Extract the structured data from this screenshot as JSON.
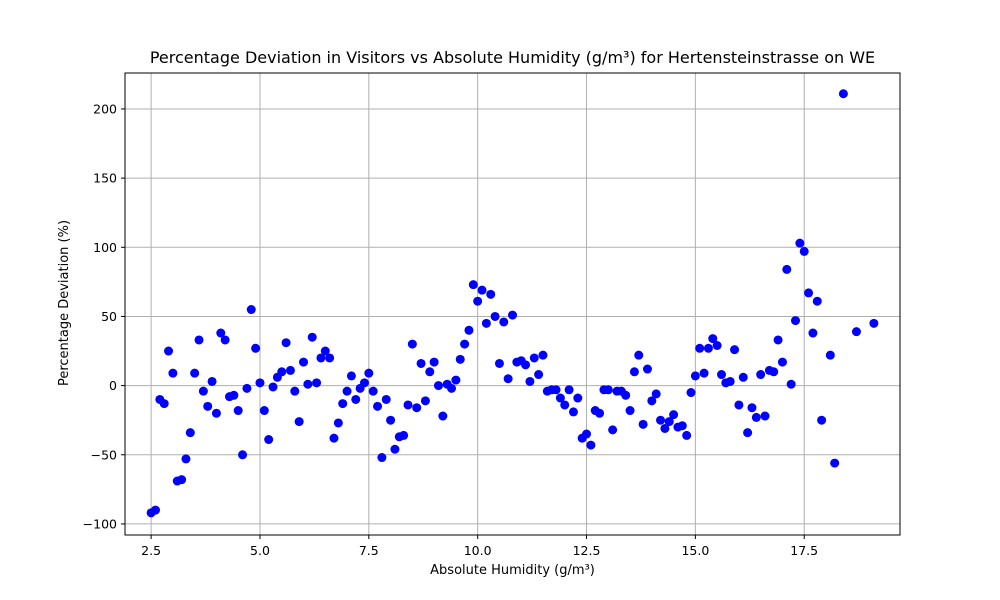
{
  "chart_data": {
    "type": "scatter",
    "title": "Percentage Deviation in Visitors vs Absolute Humidity (g/m³) for Hertensteinstrasse on WE",
    "xlabel": "Absolute Humidity (g/m³)",
    "ylabel": "Percentage Deviation (%)",
    "xlim": [
      1.9,
      19.7
    ],
    "ylim": [
      -108,
      226
    ],
    "xticks": [
      2.5,
      5.0,
      7.5,
      10.0,
      12.5,
      15.0,
      17.5
    ],
    "xtick_labels": [
      "2.5",
      "5.0",
      "7.5",
      "10.0",
      "12.5",
      "15.0",
      "17.5"
    ],
    "yticks": [
      -100,
      -50,
      0,
      50,
      100,
      150,
      200
    ],
    "ytick_labels": [
      "−100",
      "−50",
      "0",
      "50",
      "100",
      "150",
      "200"
    ],
    "grid": true,
    "marker_color": "#0000ff",
    "points": [
      [
        2.5,
        -92
      ],
      [
        2.6,
        -90
      ],
      [
        2.7,
        -10
      ],
      [
        2.8,
        -13
      ],
      [
        2.9,
        25
      ],
      [
        3.0,
        9
      ],
      [
        3.1,
        -69
      ],
      [
        3.2,
        -68
      ],
      [
        3.3,
        -53
      ],
      [
        3.4,
        -34
      ],
      [
        3.5,
        9
      ],
      [
        3.6,
        33
      ],
      [
        3.7,
        -4
      ],
      [
        3.8,
        -15
      ],
      [
        3.9,
        3
      ],
      [
        4.0,
        -20
      ],
      [
        4.1,
        38
      ],
      [
        4.2,
        33
      ],
      [
        4.3,
        -8
      ],
      [
        4.4,
        -7
      ],
      [
        4.5,
        -18
      ],
      [
        4.6,
        -50
      ],
      [
        4.7,
        -2
      ],
      [
        4.8,
        55
      ],
      [
        4.9,
        27
      ],
      [
        5.0,
        2
      ],
      [
        5.1,
        -18
      ],
      [
        5.2,
        -39
      ],
      [
        5.3,
        -1
      ],
      [
        5.4,
        6
      ],
      [
        5.5,
        10
      ],
      [
        5.6,
        31
      ],
      [
        5.7,
        11
      ],
      [
        5.8,
        -4
      ],
      [
        5.9,
        -26
      ],
      [
        6.0,
        17
      ],
      [
        6.1,
        1
      ],
      [
        6.2,
        35
      ],
      [
        6.3,
        2
      ],
      [
        6.4,
        20
      ],
      [
        6.5,
        25
      ],
      [
        6.6,
        20
      ],
      [
        6.7,
        -38
      ],
      [
        6.8,
        -27
      ],
      [
        6.9,
        -13
      ],
      [
        7.0,
        -4
      ],
      [
        7.1,
        7
      ],
      [
        7.2,
        -10
      ],
      [
        7.3,
        -2
      ],
      [
        7.4,
        2
      ],
      [
        7.5,
        9
      ],
      [
        7.6,
        -4
      ],
      [
        7.7,
        -15
      ],
      [
        7.8,
        -52
      ],
      [
        7.9,
        -10
      ],
      [
        8.0,
        -25
      ],
      [
        8.1,
        -46
      ],
      [
        8.2,
        -37
      ],
      [
        8.3,
        -36
      ],
      [
        8.4,
        -14
      ],
      [
        8.5,
        30
      ],
      [
        8.6,
        -16
      ],
      [
        8.7,
        16
      ],
      [
        8.8,
        -11
      ],
      [
        8.9,
        10
      ],
      [
        9.0,
        17
      ],
      [
        9.1,
        0
      ],
      [
        9.2,
        -22
      ],
      [
        9.3,
        1
      ],
      [
        9.4,
        -2
      ],
      [
        9.5,
        4
      ],
      [
        9.6,
        19
      ],
      [
        9.7,
        30
      ],
      [
        9.8,
        40
      ],
      [
        9.9,
        73
      ],
      [
        10.0,
        61
      ],
      [
        10.1,
        69
      ],
      [
        10.2,
        45
      ],
      [
        10.3,
        66
      ],
      [
        10.4,
        50
      ],
      [
        10.5,
        16
      ],
      [
        10.6,
        46
      ],
      [
        10.7,
        5
      ],
      [
        10.8,
        51
      ],
      [
        10.9,
        17
      ],
      [
        11.0,
        18
      ],
      [
        11.1,
        15
      ],
      [
        11.2,
        3
      ],
      [
        11.3,
        20
      ],
      [
        11.4,
        8
      ],
      [
        11.5,
        22
      ],
      [
        11.6,
        -4
      ],
      [
        11.7,
        -3
      ],
      [
        11.8,
        -3
      ],
      [
        11.9,
        -9
      ],
      [
        12.0,
        -14
      ],
      [
        12.1,
        -3
      ],
      [
        12.2,
        -19
      ],
      [
        12.3,
        -9
      ],
      [
        12.4,
        -38
      ],
      [
        12.5,
        -35
      ],
      [
        12.6,
        -43
      ],
      [
        12.7,
        -18
      ],
      [
        12.8,
        -20
      ],
      [
        12.9,
        -3
      ],
      [
        13.0,
        -3
      ],
      [
        13.1,
        -32
      ],
      [
        13.2,
        -4
      ],
      [
        13.3,
        -4
      ],
      [
        13.4,
        -7
      ],
      [
        13.5,
        -18
      ],
      [
        13.6,
        10
      ],
      [
        13.7,
        22
      ],
      [
        13.8,
        -28
      ],
      [
        13.9,
        12
      ],
      [
        14.0,
        -11
      ],
      [
        14.1,
        -6
      ],
      [
        14.2,
        -25
      ],
      [
        14.3,
        -31
      ],
      [
        14.4,
        -26
      ],
      [
        14.5,
        -21
      ],
      [
        14.6,
        -30
      ],
      [
        14.7,
        -29
      ],
      [
        14.8,
        -36
      ],
      [
        14.9,
        -5
      ],
      [
        15.0,
        7
      ],
      [
        15.1,
        27
      ],
      [
        15.2,
        9
      ],
      [
        15.3,
        27
      ],
      [
        15.4,
        34
      ],
      [
        15.5,
        29
      ],
      [
        15.6,
        8
      ],
      [
        15.7,
        2
      ],
      [
        15.8,
        3
      ],
      [
        15.9,
        26
      ],
      [
        16.0,
        -14
      ],
      [
        16.1,
        6
      ],
      [
        16.2,
        -34
      ],
      [
        16.3,
        -16
      ],
      [
        16.4,
        -23
      ],
      [
        16.5,
        8
      ],
      [
        16.6,
        -22
      ],
      [
        16.7,
        11
      ],
      [
        16.8,
        10
      ],
      [
        16.9,
        33
      ],
      [
        17.0,
        17
      ],
      [
        17.1,
        84
      ],
      [
        17.2,
        1
      ],
      [
        17.3,
        47
      ],
      [
        17.4,
        103
      ],
      [
        17.5,
        97
      ],
      [
        17.6,
        67
      ],
      [
        17.7,
        38
      ],
      [
        17.8,
        61
      ],
      [
        17.9,
        -25
      ],
      [
        18.1,
        22
      ],
      [
        18.2,
        -56
      ],
      [
        18.4,
        211
      ],
      [
        18.7,
        39
      ],
      [
        19.1,
        45
      ]
    ]
  }
}
